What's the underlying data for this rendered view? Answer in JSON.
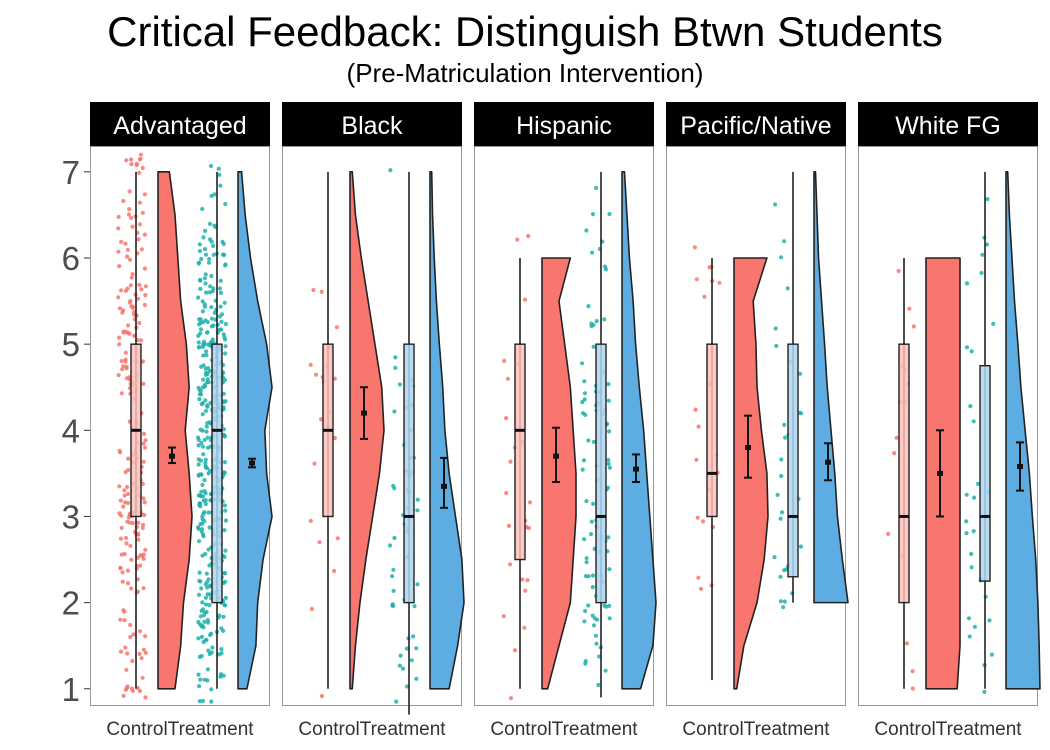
{
  "title": "Critical Feedback: Distinguish Btwn Students",
  "subtitle": "(Pre-Matriculation Intervention)",
  "chart_data": {
    "type": "raincloud",
    "title": "Critical Feedback: Distinguish Btwn Students",
    "subtitle": "(Pre-Matriculation Intervention)",
    "ylim": [
      0.8,
      7.3
    ],
    "yticks": [
      1,
      2,
      3,
      4,
      5,
      6,
      7
    ],
    "grid": false,
    "legend": "none",
    "groups": [
      "Control",
      "Treatment"
    ],
    "colors": {
      "control_fill": "#F8766D",
      "control_box": "#FBC0BB",
      "control_points": "#F8766D",
      "treatment_fill": "#5DADE2",
      "treatment_box": "#AED6F1",
      "treatment_points": "#20B2AA",
      "strip_bg": "#000000",
      "strip_text": "#FFFFFF"
    },
    "panels": [
      {
        "label": "Advantaged",
        "control": {
          "n_points": 220,
          "box": {
            "min": 1,
            "q1": 3,
            "median": 4,
            "q3": 5,
            "max": 7
          },
          "mean": 3.7,
          "ci": [
            3.62,
            3.8
          ],
          "violin_range": [
            1,
            7
          ],
          "density": [
            0.3,
            0.4,
            0.45,
            0.55,
            0.6,
            0.55,
            0.48,
            0.55,
            0.5,
            0.4,
            0.35,
            0.3,
            0.2
          ]
        },
        "treatment": {
          "n_points": 420,
          "box": {
            "min": 1,
            "q1": 2,
            "median": 4,
            "q3": 5,
            "max": 7
          },
          "mean": 3.62,
          "ci": [
            3.57,
            3.67
          ],
          "violin_range": [
            1,
            7
          ],
          "density": [
            0.25,
            0.5,
            0.55,
            0.7,
            0.95,
            0.8,
            0.75,
            0.95,
            0.8,
            0.55,
            0.35,
            0.2,
            0.1
          ]
        }
      },
      {
        "label": "Black",
        "control": {
          "n_points": 20,
          "box": {
            "min": 1,
            "q1": 3,
            "median": 4,
            "q3": 5,
            "max": 7
          },
          "mean": 4.2,
          "ci": [
            3.9,
            4.5
          ],
          "violin_range": [
            1,
            7
          ],
          "density": [
            0.05,
            0.12,
            0.22,
            0.35,
            0.5,
            0.65,
            0.75,
            0.7,
            0.55,
            0.4,
            0.25,
            0.12,
            0.05
          ]
        },
        "treatment": {
          "n_points": 50,
          "box": {
            "min": 0.7,
            "q1": 2,
            "median": 3,
            "q3": 5,
            "max": 7
          },
          "mean": 3.35,
          "ci": [
            3.1,
            3.68
          ],
          "violin_range": [
            1,
            7
          ],
          "density": [
            0.45,
            0.65,
            0.8,
            0.75,
            0.6,
            0.45,
            0.35,
            0.3,
            0.22,
            0.15,
            0.1,
            0.06,
            0.04
          ]
        }
      },
      {
        "label": "Hispanic",
        "control": {
          "n_points": 25,
          "box": {
            "min": 1,
            "q1": 2.5,
            "median": 4,
            "q3": 5,
            "max": 6
          },
          "mean": 3.7,
          "ci": [
            3.4,
            4.03
          ],
          "violin_range": [
            1,
            6
          ],
          "density": [
            0.1,
            0.3,
            0.5,
            0.55,
            0.6,
            0.6,
            0.55,
            0.5,
            0.4,
            0.3,
            0.5
          ]
        },
        "treatment": {
          "n_points": 90,
          "box": {
            "min": 0.9,
            "q1": 2,
            "median": 3,
            "q3": 5,
            "max": 7
          },
          "mean": 3.55,
          "ci": [
            3.4,
            3.72
          ],
          "violin_range": [
            1,
            7
          ],
          "density": [
            0.3,
            0.5,
            0.55,
            0.5,
            0.45,
            0.4,
            0.35,
            0.28,
            0.22,
            0.18,
            0.12,
            0.08,
            0.04
          ]
        }
      },
      {
        "label": "Pacific/Native",
        "control": {
          "n_points": 20,
          "box": {
            "min": 1.1,
            "q1": 3,
            "median": 3.5,
            "q3": 5,
            "max": 6
          },
          "mean": 3.8,
          "ci": [
            3.45,
            4.17
          ],
          "violin_range": [
            1,
            6
          ],
          "density": [
            0.05,
            0.18,
            0.42,
            0.55,
            0.62,
            0.6,
            0.5,
            0.42,
            0.4,
            0.35,
            0.6
          ]
        },
        "treatment": {
          "n_points": 30,
          "box": {
            "min": 2,
            "q1": 2.3,
            "median": 3,
            "q3": 5,
            "max": 7
          },
          "mean": 3.63,
          "ci": [
            3.42,
            3.85
          ],
          "violin_range": [
            2,
            7
          ],
          "density": [
            0.9,
            0.75,
            0.62,
            0.55,
            0.45,
            0.35,
            0.28,
            0.2,
            0.12,
            0.08,
            0.04
          ]
        }
      },
      {
        "label": "White FG",
        "control": {
          "n_points": 15,
          "box": {
            "min": 1,
            "q1": 2,
            "median": 3,
            "q3": 5,
            "max": 6
          },
          "mean": 3.5,
          "ci": [
            3.0,
            4.0
          ],
          "violin_range": [
            1,
            6
          ],
          "density": [
            0.55,
            0.6,
            0.6,
            0.6,
            0.6,
            0.6,
            0.6,
            0.6,
            0.6,
            0.6,
            0.6
          ]
        },
        "treatment": {
          "n_points": 30,
          "box": {
            "min": 1,
            "q1": 2.25,
            "median": 3,
            "q3": 4.75,
            "max": 7
          },
          "mean": 3.58,
          "ci": [
            3.3,
            3.86
          ],
          "violin_range": [
            1,
            7
          ],
          "density": [
            0.8,
            0.78,
            0.75,
            0.7,
            0.62,
            0.55,
            0.45,
            0.35,
            0.28,
            0.2,
            0.14,
            0.08,
            0.04
          ]
        }
      }
    ]
  }
}
